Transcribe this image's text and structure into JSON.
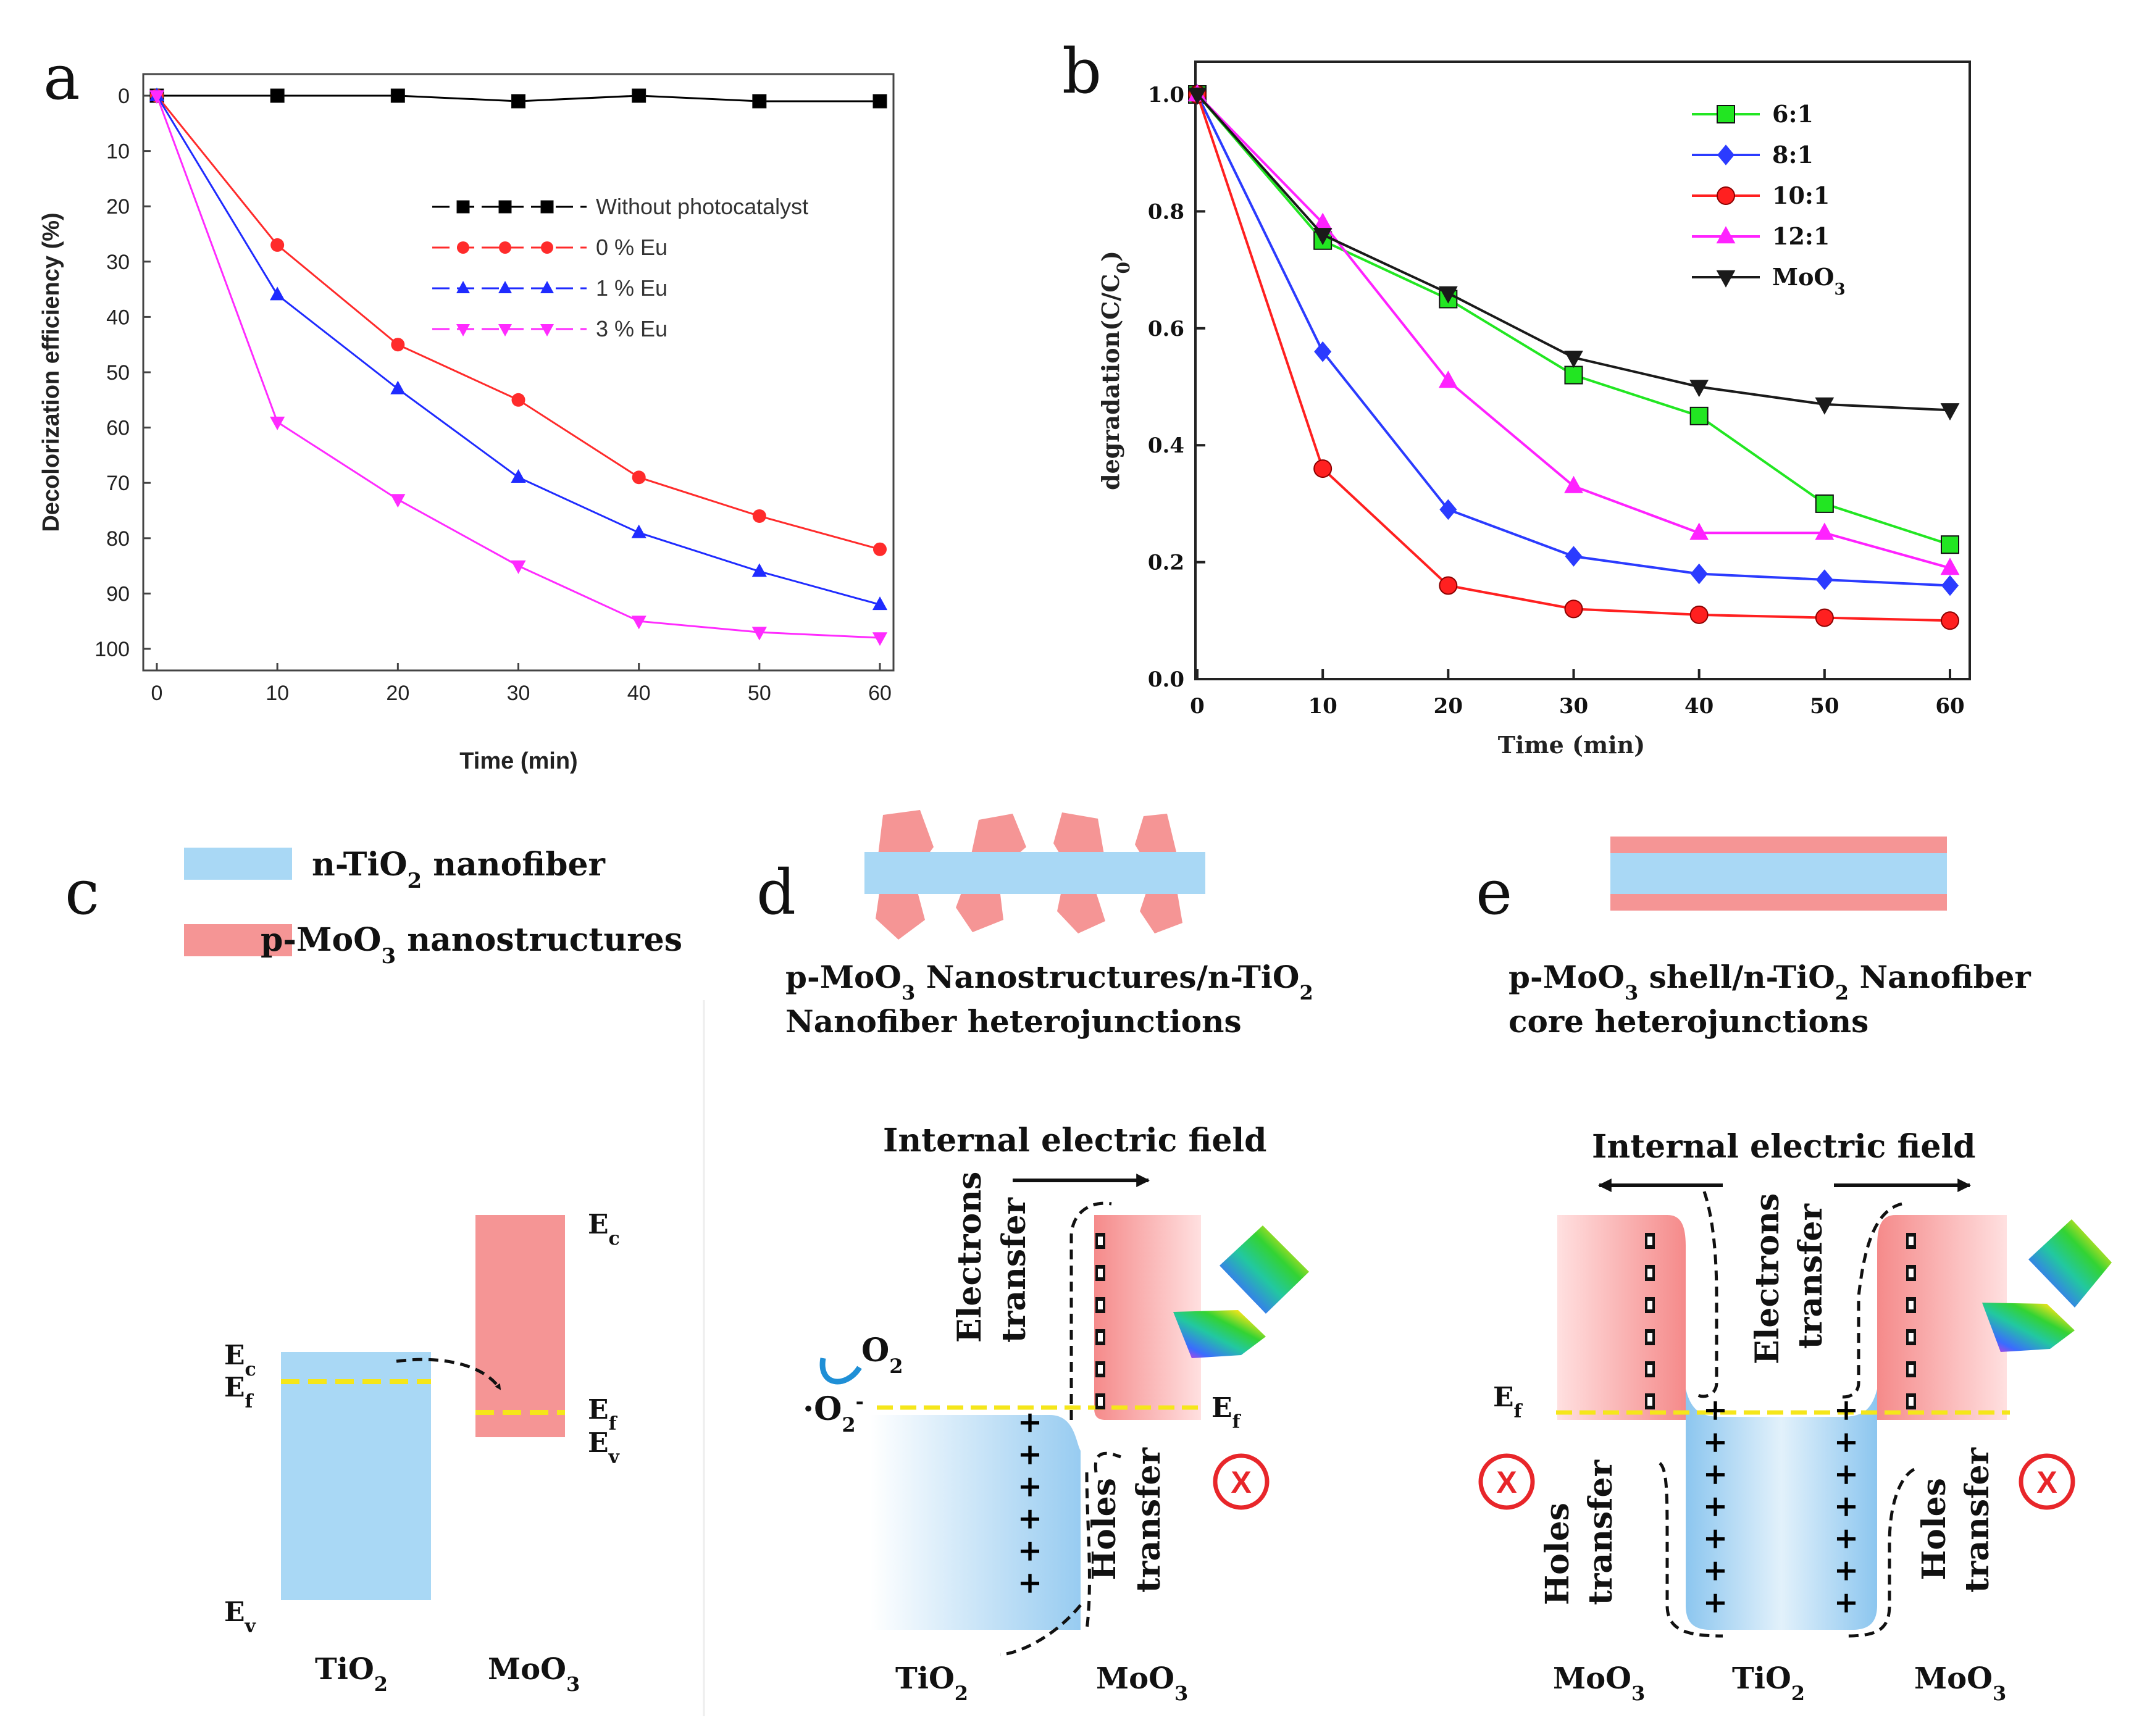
{
  "chart_data": [
    {
      "panel": "a",
      "type": "line",
      "title": "",
      "xlabel": "Time (min)",
      "ylabel": "Decolorization efficiency (%)",
      "x": [
        0,
        10,
        20,
        30,
        40,
        50,
        60
      ],
      "xticks": [
        "0",
        "10",
        "20",
        "30",
        "40",
        "50",
        "60"
      ],
      "yticks": [
        "0",
        "10",
        "20",
        "30",
        "40",
        "50",
        "60",
        "70",
        "80",
        "90",
        "100"
      ],
      "xlim": [
        0,
        60
      ],
      "ylim": [
        0,
        100
      ],
      "y_inverted": true,
      "legend_position": "center-right",
      "series": [
        {
          "name": "Without photocatalyst",
          "marker": "square",
          "color": "#000000",
          "values": [
            0,
            0,
            0,
            1,
            0,
            1,
            1
          ]
        },
        {
          "name": "0 % Eu",
          "marker": "circle",
          "color": "#ff2b2b",
          "values": [
            0,
            27,
            45,
            55,
            69,
            76,
            82
          ]
        },
        {
          "name": "1 % Eu",
          "marker": "triangle-up",
          "color": "#1f2bff",
          "values": [
            0,
            36,
            53,
            69,
            79,
            86,
            92
          ]
        },
        {
          "name": "3 % Eu",
          "marker": "triangle-down",
          "color": "#ff2bff",
          "values": [
            0,
            59,
            73,
            85,
            95,
            97,
            98
          ]
        }
      ]
    },
    {
      "panel": "b",
      "type": "line",
      "title": "",
      "xlabel": "Time (min)",
      "ylabel": "degradation(C/C0)",
      "x": [
        0,
        10,
        20,
        30,
        40,
        50,
        60
      ],
      "xticks": [
        "0",
        "10",
        "20",
        "30",
        "40",
        "50",
        "60"
      ],
      "yticks": [
        "0.0",
        "0.2",
        "0.4",
        "0.6",
        "0.8",
        "1.0"
      ],
      "xlim": [
        0,
        60
      ],
      "ylim": [
        0,
        1.0
      ],
      "legend_position": "top-right",
      "series": [
        {
          "name": "6:1",
          "marker": "square",
          "color": "#22e622",
          "values": [
            1.0,
            0.75,
            0.65,
            0.52,
            0.45,
            0.3,
            0.23
          ]
        },
        {
          "name": "8:1",
          "marker": "diamond",
          "color": "#2b3bff",
          "values": [
            1.0,
            0.56,
            0.29,
            0.21,
            0.18,
            0.17,
            0.16
          ]
        },
        {
          "name": "10:1",
          "marker": "ball",
          "color": "#ff2020",
          "values": [
            1.0,
            0.36,
            0.16,
            0.12,
            0.11,
            0.105,
            0.1
          ]
        },
        {
          "name": "12:1",
          "marker": "triangle-up",
          "color": "#ff22ff",
          "values": [
            1.0,
            0.78,
            0.51,
            0.33,
            0.25,
            0.25,
            0.19
          ]
        },
        {
          "name": "MoO3",
          "marker": "triangle-down",
          "color": "#1a1a1a",
          "values": [
            1.0,
            0.76,
            0.66,
            0.55,
            0.5,
            0.47,
            0.46
          ]
        }
      ]
    }
  ],
  "panel_letters": {
    "a": "a",
    "b": "b",
    "c": "c",
    "d": "d",
    "e": "e"
  },
  "legend_c": {
    "tio2": "n-TiO2 nanofiber",
    "moo3": "p-MoO3 nanostructures"
  },
  "caption_d": {
    "line1": "p-MoO3 Nanostructures/n-TiO2",
    "line2": "Nanofiber heterojunctions"
  },
  "caption_e": {
    "line1": "p-MoO3 shell/n-TiO2  Nanofiber",
    "line2": "core heterojunctions"
  },
  "band_c": {
    "ec_moo3": "Ec",
    "ec_tio2": "Ec",
    "ef_tio2": "Ef",
    "ef_moo3": "Ef",
    "ev_moo3": "Ev",
    "ev_tio2": "Ev",
    "tio2": "TiO2",
    "moo3": "MoO3"
  },
  "diagram_d": {
    "field": "Internal electric field",
    "electrons": "Electrons",
    "e_transfer": "transfer",
    "holes": "Holes",
    "h_transfer": "transfer",
    "o2": "O2",
    "superoxide": "·O2-",
    "ef": "Ef",
    "left": "TiO2",
    "right": "MoO3"
  },
  "diagram_e": {
    "field": "Internal electric field",
    "electrons": "Electrons",
    "e_transfer": "transfer",
    "holes": "Holes",
    "h_transfer": "transfer",
    "ef": "Ef",
    "left": "MoO3",
    "mid": "TiO2",
    "right": "MoO3"
  },
  "colors": {
    "tio2_blue": "#a9d8f5",
    "moo3_pink": "#f59595",
    "fermi_yellow": "#f5e61a",
    "red_x": "#e8262a"
  }
}
